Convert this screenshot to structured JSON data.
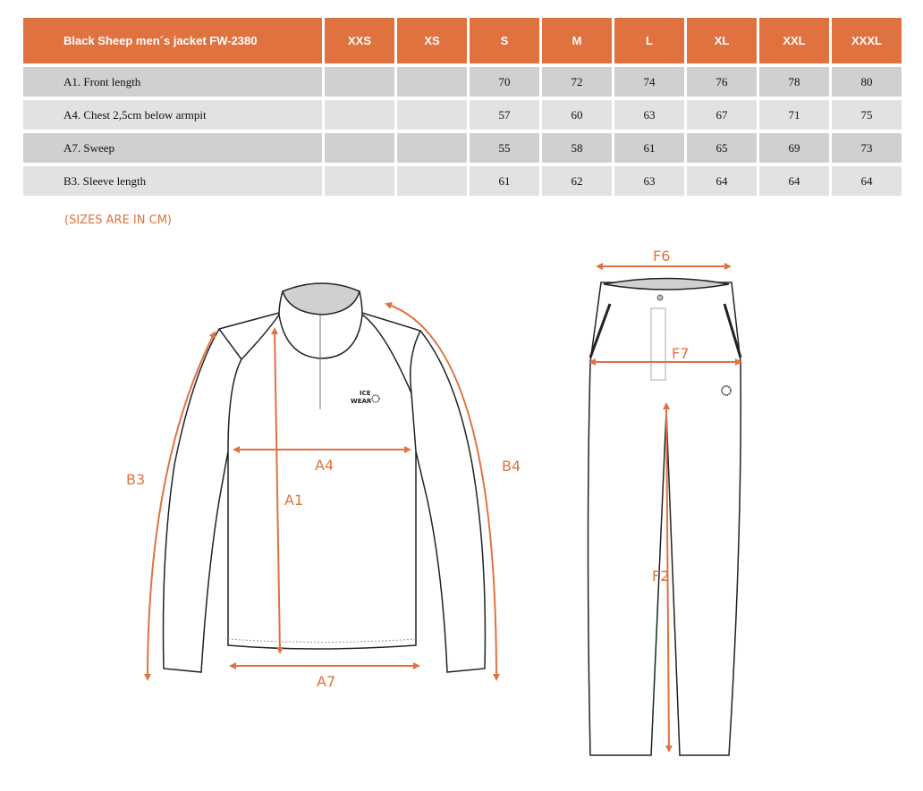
{
  "table": {
    "title": "Black Sheep men´s jacket FW-2380",
    "sizes": [
      "XXS",
      "XS",
      "S",
      "M",
      "L",
      "XL",
      "XXL",
      "XXXL"
    ],
    "rows": [
      {
        "label": "A1. Front length",
        "values": [
          "",
          "",
          "70",
          "72",
          "74",
          "76",
          "78",
          "80"
        ]
      },
      {
        "label": "A4. Chest 2,5cm below armpit",
        "values": [
          "",
          "",
          "57",
          "60",
          "63",
          "67",
          "71",
          "75"
        ]
      },
      {
        "label": "A7. Sweep",
        "values": [
          "",
          "",
          "55",
          "58",
          "61",
          "65",
          "69",
          "73"
        ]
      },
      {
        "label": "B3. Sleeve length",
        "values": [
          "",
          "",
          "61",
          "62",
          "63",
          "64",
          "64",
          "64"
        ]
      }
    ]
  },
  "note": "(SIZES ARE IN CM)",
  "diagram": {
    "accent": "#e07240",
    "jacket_labels": {
      "a1": "A1",
      "a4": "A4",
      "a7": "A7",
      "b3": "B3",
      "b4": "B4"
    },
    "logo": "ICE WEAR",
    "pants_labels": {
      "f6": "F6",
      "f7": "F7",
      "f2": "F2"
    }
  }
}
